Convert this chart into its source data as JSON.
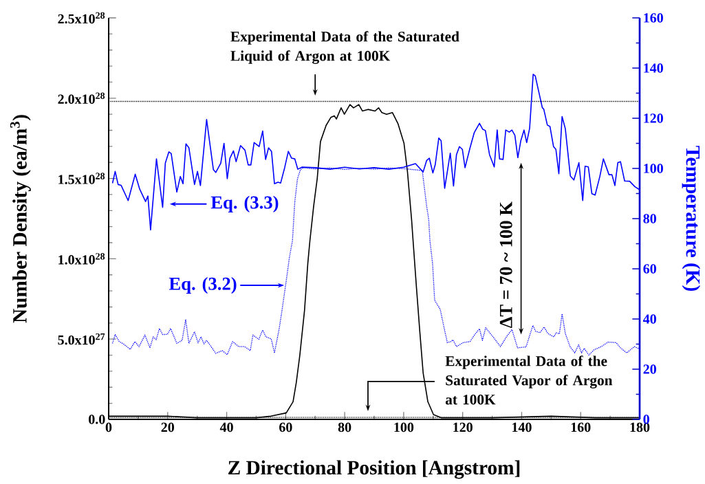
{
  "chart_data": {
    "type": "line",
    "xlabel": "Z Directional Position [Angstrom]",
    "ylabel": "Number Density (ea/m$^{3}$)",
    "y2label": "Temperature (K)",
    "xlim": [
      0,
      180
    ],
    "xticks": [
      0,
      20,
      40,
      60,
      80,
      100,
      120,
      140,
      160,
      180
    ],
    "ylim": [
      0,
      2.5e+28
    ],
    "yticks": [
      {
        "value": 0,
        "label": "0.0"
      },
      {
        "value": 5e+27,
        "label": "5.0x10$^{27}$"
      },
      {
        "value": 1e+28,
        "label": "1.0x10$^{28}$"
      },
      {
        "value": 1.5e+28,
        "label": "1.5x10$^{28}$"
      },
      {
        "value": 2e+28,
        "label": "2.0x10$^{28}$"
      },
      {
        "value": 2.5e+28,
        "label": "2.5x10$^{28}$"
      }
    ],
    "y2lim": [
      0,
      160
    ],
    "y2ticks": [
      0,
      20,
      40,
      60,
      80,
      100,
      120,
      140,
      160
    ],
    "grid": false,
    "marker": "none",
    "series": [
      {
        "color": "#000000",
        "line_style": "solid",
        "x": [
          0,
          10,
          20,
          30,
          40,
          50,
          55,
          60.2,
          62.5,
          63.6,
          64.8,
          66.4,
          67.5,
          68.2,
          69.5,
          70.7,
          71.8,
          73.7,
          75.3,
          76.5,
          77.2,
          78.8,
          79.9,
          81.8,
          83.0,
          84.8,
          86.0,
          87.9,
          90.3,
          91.5,
          92.6,
          94.2,
          96.2,
          98.1,
          100.1,
          101.3,
          102.7,
          103.2,
          104.3,
          105.5,
          106.6,
          108.2,
          110.1,
          112.8,
          130,
          150,
          165,
          180
        ],
        "values": [
          2e+26,
          2e+26,
          2e+26,
          1e+26,
          1e+26,
          1e+26,
          2e+26,
          4e+26,
          1.1e+27,
          2.3e+27,
          4e+27,
          6.8e+27,
          9.7e+27,
          1.11e+28,
          1.33e+28,
          1.5e+28,
          1.73e+28,
          1.83e+28,
          1.88e+28,
          1.89e+28,
          1.87e+28,
          1.94e+28,
          1.9e+28,
          1.96e+28,
          1.94e+28,
          1.96e+28,
          1.92e+28,
          1.93e+28,
          1.92e+28,
          1.94e+28,
          1.91e+28,
          1.9e+28,
          1.91e+28,
          1.84e+28,
          1.72e+28,
          1.54e+28,
          1.24e+28,
          1.11e+28,
          8.3e+27,
          5.4e+27,
          2.9e+27,
          1.1e+27,
          3e+26,
          1e+26,
          1e+26,
          2e+26,
          1e+26,
          1e+26
        ]
      },
      {
        "color": "#0000ff",
        "axis": "y2",
        "line_style": "solid",
        "x": [
          1.3,
          2.2,
          3.2,
          4.2,
          6.6,
          9.0,
          10.5,
          12.5,
          13.3,
          14.2,
          16.2,
          18.3,
          19.2,
          20.4,
          21.2,
          23.1,
          24.3,
          25.2,
          26.2,
          27.2,
          29.1,
          30.1,
          31.1,
          33.2,
          35.5,
          36.3,
          38.0,
          39.1,
          40.2,
          41.1,
          42.3,
          43.2,
          44.7,
          46.2,
          47.3,
          48.2,
          49.3,
          51.0,
          52.2,
          53.2,
          54.2,
          55.2,
          56.2,
          57.4,
          58.3,
          59.7,
          60.9,
          62.0,
          63.1,
          64.1,
          65.5,
          70,
          75,
          80,
          85,
          90,
          95,
          100,
          104.0,
          106.6,
          107.8,
          108.7,
          109.9,
          110.7,
          111.9,
          112.7,
          113.9,
          115.8,
          116.9,
          117.9,
          118.9,
          119.9,
          120.8,
          122.5,
          123.9,
          125.7,
          126.8,
          127.7,
          129.1,
          130.7,
          131.7,
          132.5,
          133.7,
          134.6,
          135.8,
          136.7,
          137.7,
          138.7,
          139.7,
          140.8,
          141.7,
          142.7,
          143.9,
          144.6,
          147.0,
          147.5,
          148.7,
          149.6,
          150.8,
          151.6,
          152.6,
          153.7,
          154.8,
          156.5,
          157.7,
          159.4,
          160.7,
          161.5,
          162.6,
          163.8,
          164.9,
          166.5,
          167.7,
          169.6,
          170.6,
          171.6,
          172.6,
          173.5,
          174.9,
          176.6,
          178.4,
          180
        ],
        "values": [
          94.1,
          98.8,
          93.6,
          93.3,
          87.2,
          97.7,
          91.8,
          86.8,
          89,
          75.5,
          103.8,
          84.5,
          102.1,
          106.6,
          105.9,
          90.6,
          96.8,
          93.9,
          109.8,
          108.2,
          93.6,
          98.8,
          93.2,
          119.5,
          99.5,
          98.4,
          102.1,
          110,
          95.9,
          104.1,
          107,
          102.7,
          109.1,
          107.3,
          101.4,
          101.4,
          110.3,
          108.7,
          114.9,
          103.6,
          108.2,
          106.8,
          93.9,
          94.5,
          94.2,
          100.5,
          106.8,
          104.1,
          103.8,
          99.7,
          100.5,
          100.3,
          99.7,
          100.5,
          99.8,
          100.3,
          99.7,
          100.5,
          101.9,
          98.6,
          103.2,
          104.1,
          98.2,
          101.5,
          112.1,
          111,
          92.1,
          106.1,
          93,
          105.5,
          108.7,
          107.6,
          100.3,
          108.2,
          114.2,
          118,
          115.6,
          115.1,
          105.5,
          100.6,
          115.3,
          103.8,
          103.6,
          115.3,
          114.5,
          115.3,
          113.2,
          104.3,
          111,
          115.3,
          110.3,
          116,
          137.5,
          136.9,
          124.2,
          123.6,
          117.3,
          116.7,
          108.7,
          107.6,
          97.9,
          120.7,
          115.8,
          97,
          95.4,
          102.3,
          87.2,
          100.9,
          100.6,
          89.9,
          89.4,
          96.8,
          103.8,
          97.5,
          97.5,
          93.2,
          102.3,
          102.7,
          95,
          94.9,
          92.7,
          91.5
        ]
      },
      {
        "color": "#0000ff",
        "axis": "y2",
        "line_style": "dotted",
        "x": [
          1.3,
          2.2,
          3.6,
          5.2,
          7.3,
          8.9,
          10.3,
          12.3,
          14.0,
          15.1,
          16.1,
          17.2,
          18.3,
          19.9,
          21.0,
          23.1,
          24.9,
          26.1,
          27.2,
          29.1,
          30.3,
          31.3,
          32.3,
          33.2,
          34.6,
          36.3,
          38.5,
          40.2,
          42.0,
          44.1,
          46.1,
          48.0,
          48.9,
          50.9,
          52.2,
          53.3,
          55.1,
          56.2,
          57.8,
          58.8,
          60.2,
          61.3,
          62.3,
          63.1,
          64.0,
          65.0,
          65.9,
          70,
          75,
          80,
          85,
          90,
          95,
          100,
          106.3,
          107.8,
          108.5,
          108.9,
          109.8,
          110.5,
          112.4,
          113.7,
          114.8,
          116.0,
          116.7,
          117.9,
          120.2,
          122.5,
          124.1,
          125.7,
          126.7,
          127.8,
          130.3,
          132.8,
          134.9,
          136.7,
          138.6,
          141.5,
          143.8,
          144.7,
          146.2,
          147.6,
          148.9,
          150.9,
          151.7,
          152.8,
          153.7,
          154.8,
          156.4,
          158.0,
          159.3,
          160.3,
          161.2,
          162.8,
          164.5,
          167.0,
          169.3,
          172.0,
          173.5,
          175.6,
          178.2,
          180
        ],
        "values": [
          30.3,
          33.8,
          31,
          29.9,
          27.9,
          31,
          29,
          33.6,
          28.5,
          32.9,
          31.8,
          36.2,
          33.8,
          33.9,
          36.2,
          30.3,
          31.5,
          39.7,
          30.3,
          34.9,
          30.5,
          32.9,
          30.1,
          31.5,
          29.2,
          26.3,
          27.4,
          25.8,
          31,
          29,
          29,
          27.4,
          33.6,
          31.9,
          35.6,
          32.9,
          32.1,
          26.5,
          36.1,
          43.8,
          55.3,
          64.8,
          71.2,
          86.8,
          95.9,
          99.5,
          100.3,
          99.8,
          100.2,
          99.6,
          100.1,
          99.7,
          100.2,
          99.9,
          99.2,
          84.9,
          79.5,
          71.2,
          62.1,
          47.5,
          43.8,
          36.5,
          30.6,
          31,
          31.7,
          29,
          30.6,
          31,
          33.8,
          36.1,
          31.5,
          36.5,
          32.9,
          29,
          33,
          35.8,
          28.5,
          28.9,
          37.4,
          35.2,
          34.5,
          36.8,
          34.2,
          32.9,
          34.5,
          34.1,
          42,
          34.2,
          29,
          26.5,
          29.7,
          26.5,
          28.3,
          25.6,
          27.7,
          29,
          30.8,
          30.6,
          28.5,
          26.5,
          29,
          28
        ]
      }
    ],
    "ref_lines": [
      {
        "axis": "y",
        "value": 1.98e+28,
        "label": "Experimental Data of the Saturated Liquid of Argon at 100K",
        "color": "#000000",
        "line_style": "dotted"
      },
      {
        "axis": "y",
        "value": 1.2e+26,
        "label": "Experimental Data of the Saturated Vapor of Argon at 100K",
        "color": "#000000",
        "line_style": "dotted"
      }
    ],
    "annotations": [
      "ΔT = 70 ~ 100 K",
      "Eq. (3.3)",
      "Eq. (3.2)"
    ]
  }
}
